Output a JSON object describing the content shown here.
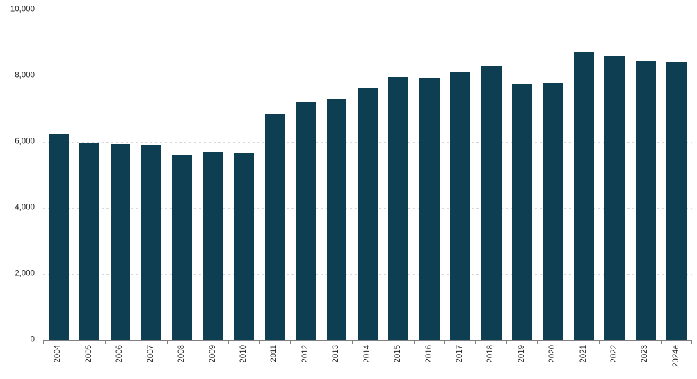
{
  "chart_data": {
    "type": "bar",
    "title": "",
    "xlabel": "",
    "ylabel": "",
    "categories": [
      "2004",
      "2005",
      "2006",
      "2007",
      "2008",
      "2009",
      "2010",
      "2011",
      "2012",
      "2013",
      "2014",
      "2015",
      "2016",
      "2017",
      "2018",
      "2019",
      "2020",
      "2021",
      "2022",
      "2023",
      "2024e"
    ],
    "values": [
      6250,
      5950,
      5930,
      5900,
      5590,
      5700,
      5660,
      6850,
      7200,
      7300,
      7650,
      7950,
      7940,
      8110,
      8290,
      7750,
      7800,
      8720,
      8600,
      8470,
      8420
    ],
    "ylim": [
      0,
      10000
    ],
    "ytick_interval": 2000,
    "yticks": [
      {
        "value": 0,
        "label": "0"
      },
      {
        "value": 2000,
        "label": "2,000"
      },
      {
        "value": 4000,
        "label": "4,000"
      },
      {
        "value": 6000,
        "label": "6,000"
      },
      {
        "value": 8000,
        "label": "8,000"
      },
      {
        "value": 10000,
        "label": "10,000"
      }
    ],
    "grid": "horizontal-dashed",
    "legend": "none",
    "x_label_rotation": -90
  },
  "colors": {
    "bar": "#0d3e52",
    "gridline": "#d9d9d9",
    "axis_line": "#808080",
    "tick_text": "#262626",
    "background": "#ffffff"
  }
}
